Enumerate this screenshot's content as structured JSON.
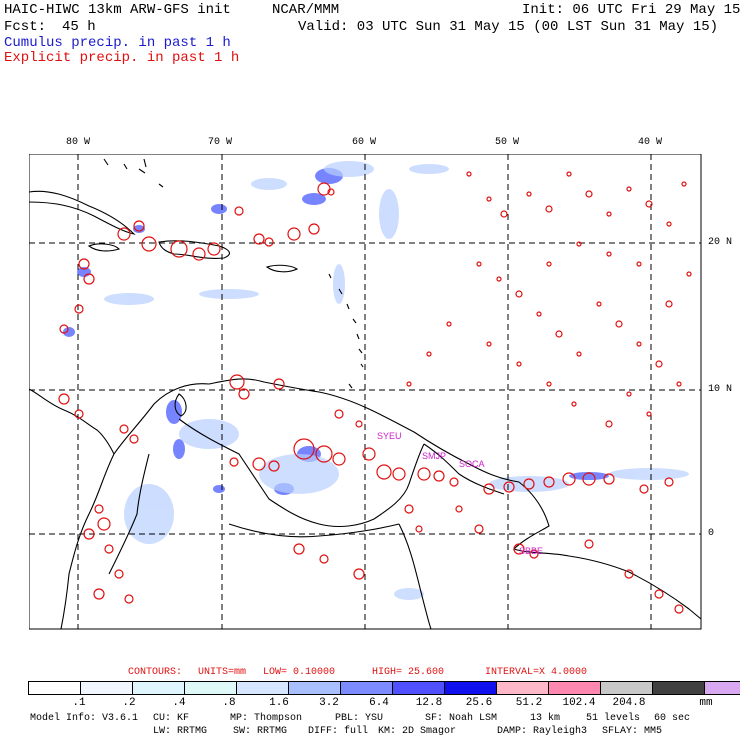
{
  "header": {
    "model_title": "HAIC-HIWC 13km ARW-GFS init",
    "org": "NCAR/MMM",
    "init": "Init: 06 UTC Fri 29 May 15",
    "fcst_label": "Fcst:",
    "fcst_value": "45 h",
    "valid": "Valid: 03 UTC Sun 31 May 15 (00 LST Sun 31 May 15)",
    "cumulus_legend": "Cumulus precip. in past 1 h",
    "explicit_legend": "Explicit precip. in past 1 h"
  },
  "map": {
    "lon_labels": [
      "80 W",
      "70 W",
      "60 W",
      "50 W",
      "40 W"
    ],
    "lat_labels": [
      "20 N",
      "10 N",
      "0"
    ],
    "stations": [
      "SYEU",
      "SMJP",
      "SOCA",
      "SBBE"
    ],
    "colors": {
      "cumulus": "#3a4dff",
      "explicit": "#e01010",
      "station": "#cc22cc",
      "land": "#000000"
    }
  },
  "contours": {
    "label": "CONTOURS:",
    "units": "UNITS=mm",
    "low": "LOW= 0.10000",
    "high": "HIGH= 25.600",
    "interval": "INTERVAL=X 4.0000"
  },
  "colorbar": {
    "ticks": [
      ".1",
      ".2",
      ".4",
      ".8",
      "1.6",
      "3.2",
      "6.4",
      "12.8",
      "25.6",
      "51.2",
      "102.4",
      "204.8"
    ],
    "unit": "mm",
    "colors": [
      "#ffffff",
      "#f2f6ff",
      "#e0f6ff",
      "#dff8f8",
      "#d6e6ff",
      "#a8c0ff",
      "#7c8cff",
      "#5050ff",
      "#1010ee",
      "#ffb8c8",
      "#ff88b0",
      "#c8c8c8",
      "#404040",
      "#d8a8f0"
    ]
  },
  "model_info": {
    "line1": [
      "Model Info: V3.6.1",
      "CU: KF",
      "MP: Thompson",
      "PBL: YSU",
      "SF: Noah LSM",
      "13 km",
      "51 levels",
      "60 sec"
    ],
    "line2": [
      "LW: RRTMG",
      "SW: RRTMG",
      "DIFF: full",
      "KM: 2D Smagor",
      "DAMP: Rayleigh3",
      "SFLAY: MM5"
    ]
  }
}
